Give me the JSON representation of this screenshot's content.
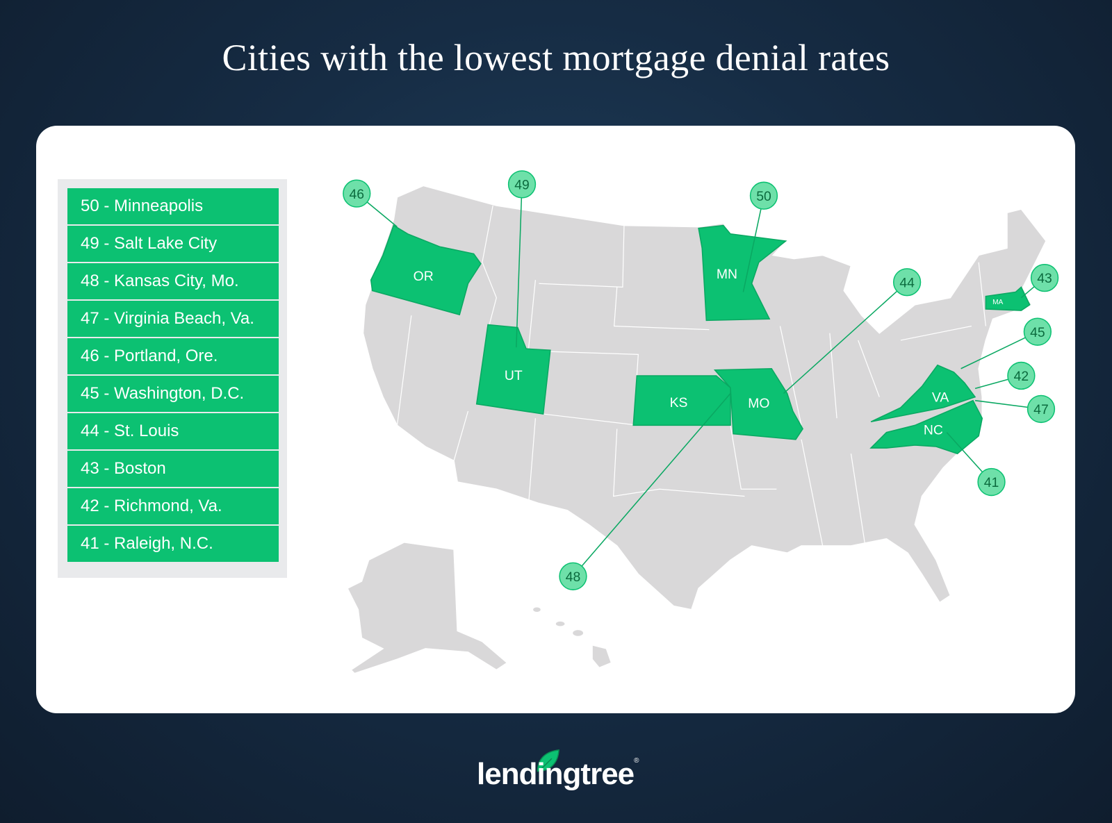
{
  "title": "Cities with the lowest mortgage denial rates",
  "colors": {
    "highlight": "#0cc172",
    "land": "#d9d8d9",
    "callout_fill": "#6ee0a9",
    "background": "#162c44"
  },
  "ranking": [
    {
      "rank": 50,
      "label": "50 - Minneapolis"
    },
    {
      "rank": 49,
      "label": "49 - Salt Lake City"
    },
    {
      "rank": 48,
      "label": "48 - Kansas City, Mo."
    },
    {
      "rank": 47,
      "label": "47 - Virginia Beach, Va."
    },
    {
      "rank": 46,
      "label": "46 - Portland, Ore."
    },
    {
      "rank": 45,
      "label": "45 - Washington, D.C."
    },
    {
      "rank": 44,
      "label": "44 - St. Louis"
    },
    {
      "rank": 43,
      "label": "43 - Boston"
    },
    {
      "rank": 42,
      "label": "42 - Richmond, Va."
    },
    {
      "rank": 41,
      "label": "41 - Raleigh, N.C."
    }
  ],
  "map": {
    "highlighted_states": [
      "OR",
      "UT",
      "KS",
      "MO",
      "MN",
      "VA",
      "NC",
      "MA"
    ],
    "callouts": [
      "46",
      "49",
      "50",
      "44",
      "43",
      "45",
      "42",
      "47",
      "41",
      "48"
    ]
  },
  "logo": {
    "text": "lendingtree",
    "registered": "®"
  }
}
